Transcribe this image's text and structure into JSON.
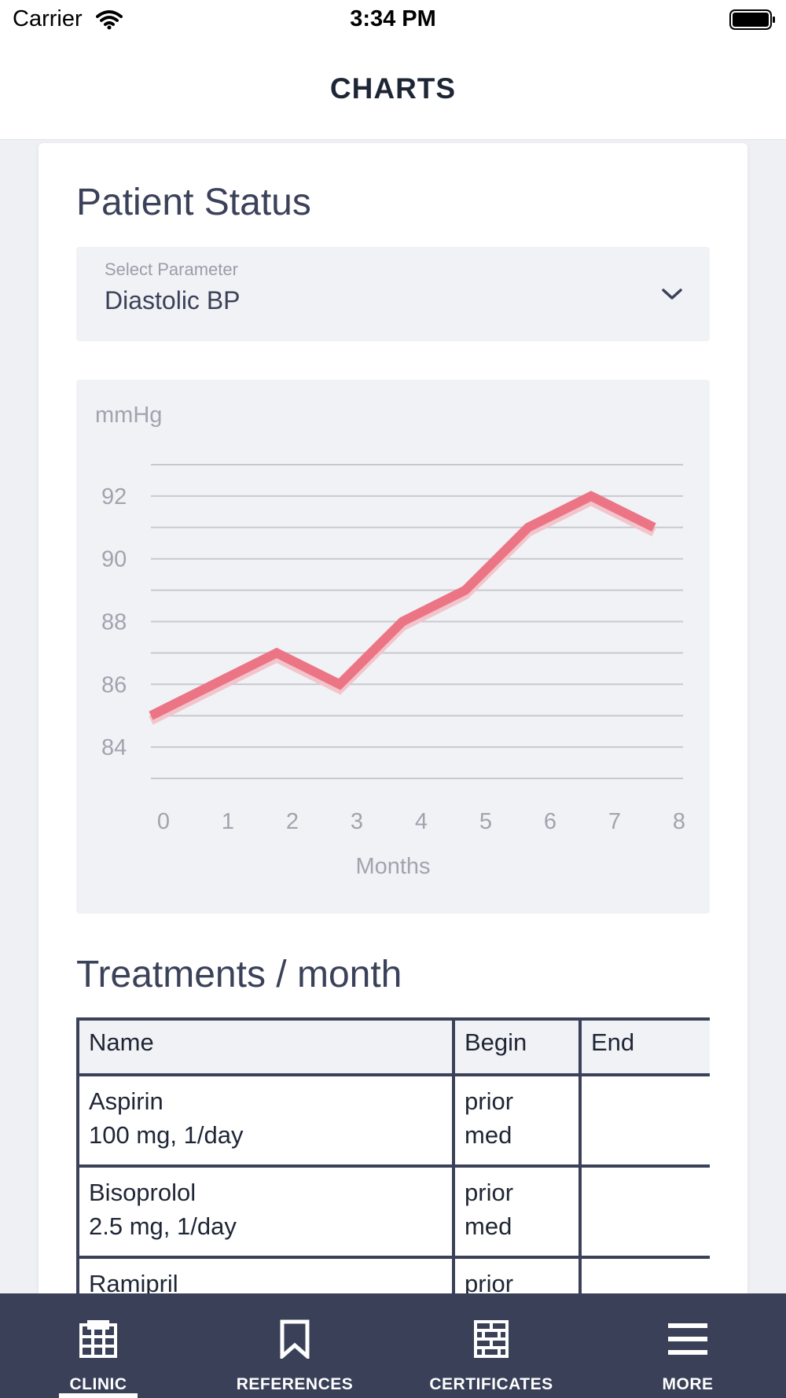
{
  "status_bar": {
    "carrier": "Carrier",
    "time": "3:34 PM"
  },
  "header": {
    "title": "CHARTS"
  },
  "patient_status": {
    "title": "Patient Status",
    "select": {
      "label": "Select Parameter",
      "value": "Diastolic BP"
    }
  },
  "chart_data": {
    "type": "line",
    "ylabel": "mmHg",
    "xlabel": "Months",
    "x": [
      0,
      1,
      2,
      3,
      4,
      5,
      6,
      7,
      8
    ],
    "y": [
      85,
      86,
      87,
      86,
      88,
      89,
      91,
      92,
      91
    ],
    "yticks": [
      84,
      86,
      88,
      90,
      92
    ],
    "ylim": [
      83,
      93
    ],
    "xlim": [
      0,
      8
    ],
    "grid": true,
    "line_color": "#ec7585"
  },
  "treatments": {
    "title": "Treatments / month",
    "columns": [
      "Name",
      "Begin",
      "End"
    ],
    "rows": [
      {
        "name": "Aspirin",
        "dose": "100 mg, 1/day",
        "begin_1": "prior",
        "begin_2": "med",
        "end": ""
      },
      {
        "name": "Bisoprolol",
        "dose": "2.5 mg, 1/day",
        "begin_1": "prior",
        "begin_2": "med",
        "end": ""
      },
      {
        "name": "Ramipril",
        "dose": "",
        "begin_1": "prior",
        "begin_2": "",
        "end": ""
      }
    ]
  },
  "tabs": [
    {
      "label": "CLINIC",
      "icon": "building-icon",
      "active": true
    },
    {
      "label": "REFERENCES",
      "icon": "bookmark-icon",
      "active": false
    },
    {
      "label": "CERTIFICATES",
      "icon": "brick-wall-icon",
      "active": false
    },
    {
      "label": "MORE",
      "icon": "menu-icon",
      "active": false
    }
  ]
}
